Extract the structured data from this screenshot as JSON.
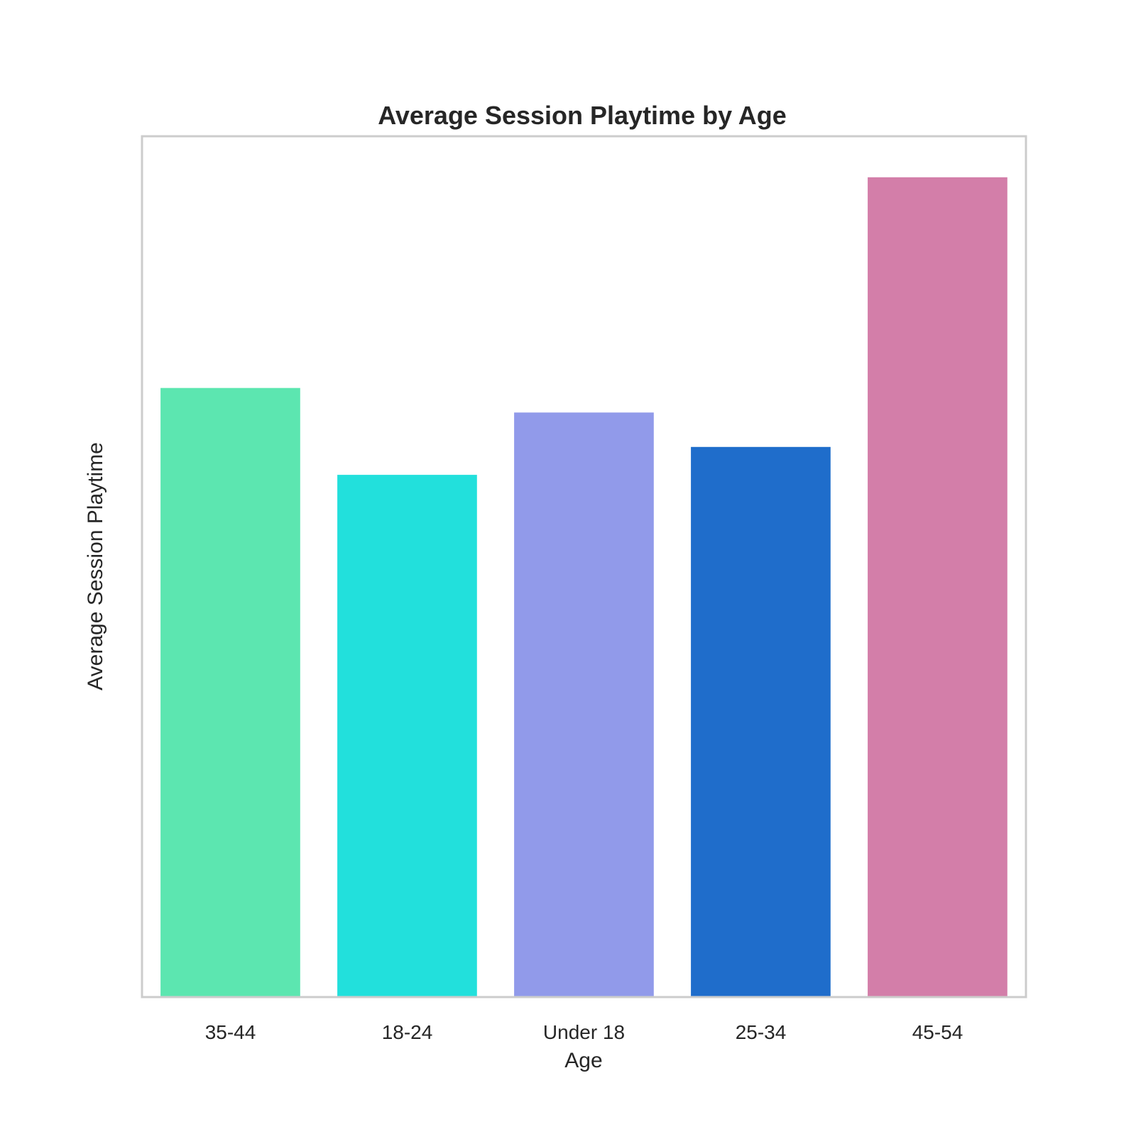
{
  "chart_data": {
    "type": "bar",
    "title": "Average Session Playtime by Age",
    "xlabel": "Age",
    "ylabel": "Average Session Playtime",
    "categories": [
      "35-44",
      "18-24",
      "Under 18",
      "25-34",
      "45-54"
    ],
    "values": [
      74.3,
      63.7,
      71.3,
      67.1,
      100.0
    ],
    "colors": [
      "#5ce6b0",
      "#22e0dc",
      "#919aea",
      "#1f6dcb",
      "#d37ea9"
    ],
    "ylim": [
      0,
      105
    ],
    "y_ticks_visible": false,
    "grid": false
  }
}
